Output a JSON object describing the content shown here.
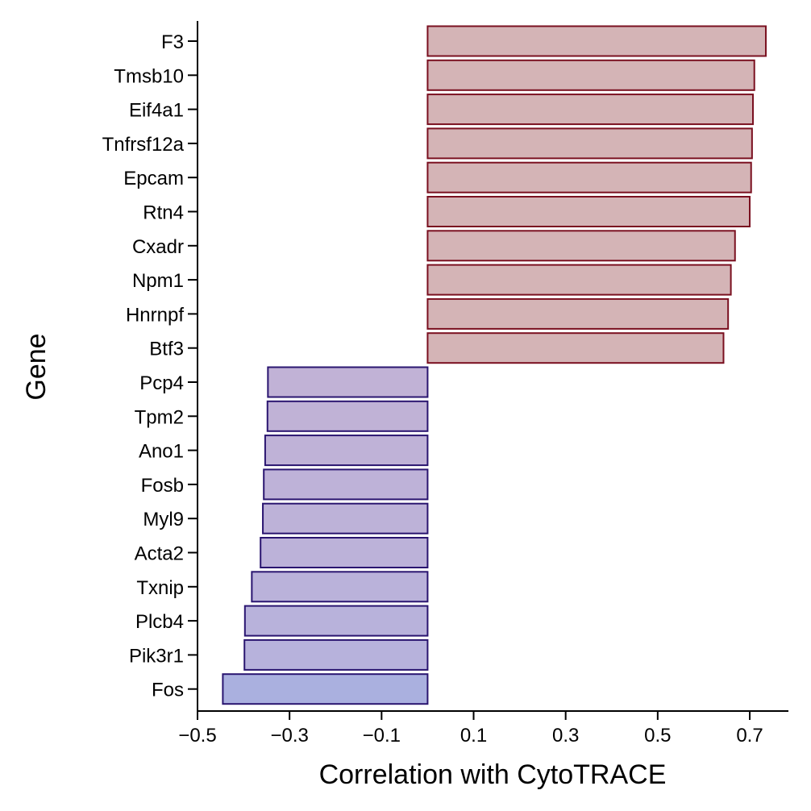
{
  "chart_data": {
    "type": "bar",
    "orientation": "horizontal",
    "title": "",
    "xlabel": "Correlation with CytoTRACE",
    "ylabel": "Gene",
    "xlim": [
      -0.5,
      0.78
    ],
    "xticks": [
      -0.5,
      -0.3,
      -0.1,
      0.1,
      0.3,
      0.5,
      0.7
    ],
    "xtick_labels": [
      "−0.5",
      "−0.3",
      "−0.1",
      "0.1",
      "0.3",
      "0.5",
      "0.7"
    ],
    "grid": false,
    "legend": "none",
    "categories": [
      "F3",
      "Tmsb10",
      "Eif4a1",
      "Tnfrsf12a",
      "Epcam",
      "Rtn4",
      "Cxadr",
      "Npm1",
      "Hnrnpf",
      "Btf3",
      "Pcp4",
      "Tpm2",
      "Ano1",
      "Fosb",
      "Myl9",
      "Acta2",
      "Txnip",
      "Plcb4",
      "Pik3r1",
      "Fos"
    ],
    "values": [
      0.735,
      0.71,
      0.707,
      0.705,
      0.703,
      0.7,
      0.668,
      0.659,
      0.653,
      0.643,
      -0.347,
      -0.348,
      -0.353,
      -0.356,
      -0.358,
      -0.363,
      -0.382,
      -0.397,
      -0.398,
      -0.445
    ],
    "fill_colors": [
      "#d4b4b6",
      "#d4b4b6",
      "#d4b4b6",
      "#d4b4b6",
      "#d4b4b6",
      "#d4b4b6",
      "#d4b4b6",
      "#d4b4b6",
      "#d4b4b6",
      "#d4b4b6",
      "#c1b2d6",
      "#c0b2d6",
      "#bfb2d7",
      "#beb2d8",
      "#bdb2d8",
      "#bcb2d9",
      "#bab2da",
      "#b8b2db",
      "#b7b2dc",
      "#aab0df"
    ],
    "stroke_colors": [
      "#7a1020",
      "#7a1020",
      "#7a1020",
      "#7a1020",
      "#7a1020",
      "#7a1020",
      "#7a1020",
      "#7a1020",
      "#7a1020",
      "#7a1020",
      "#2a1570",
      "#2a1570",
      "#2a1570",
      "#2a1570",
      "#2a1570",
      "#2a1570",
      "#2a1570",
      "#2a1570",
      "#2a1570",
      "#2a1570"
    ]
  }
}
